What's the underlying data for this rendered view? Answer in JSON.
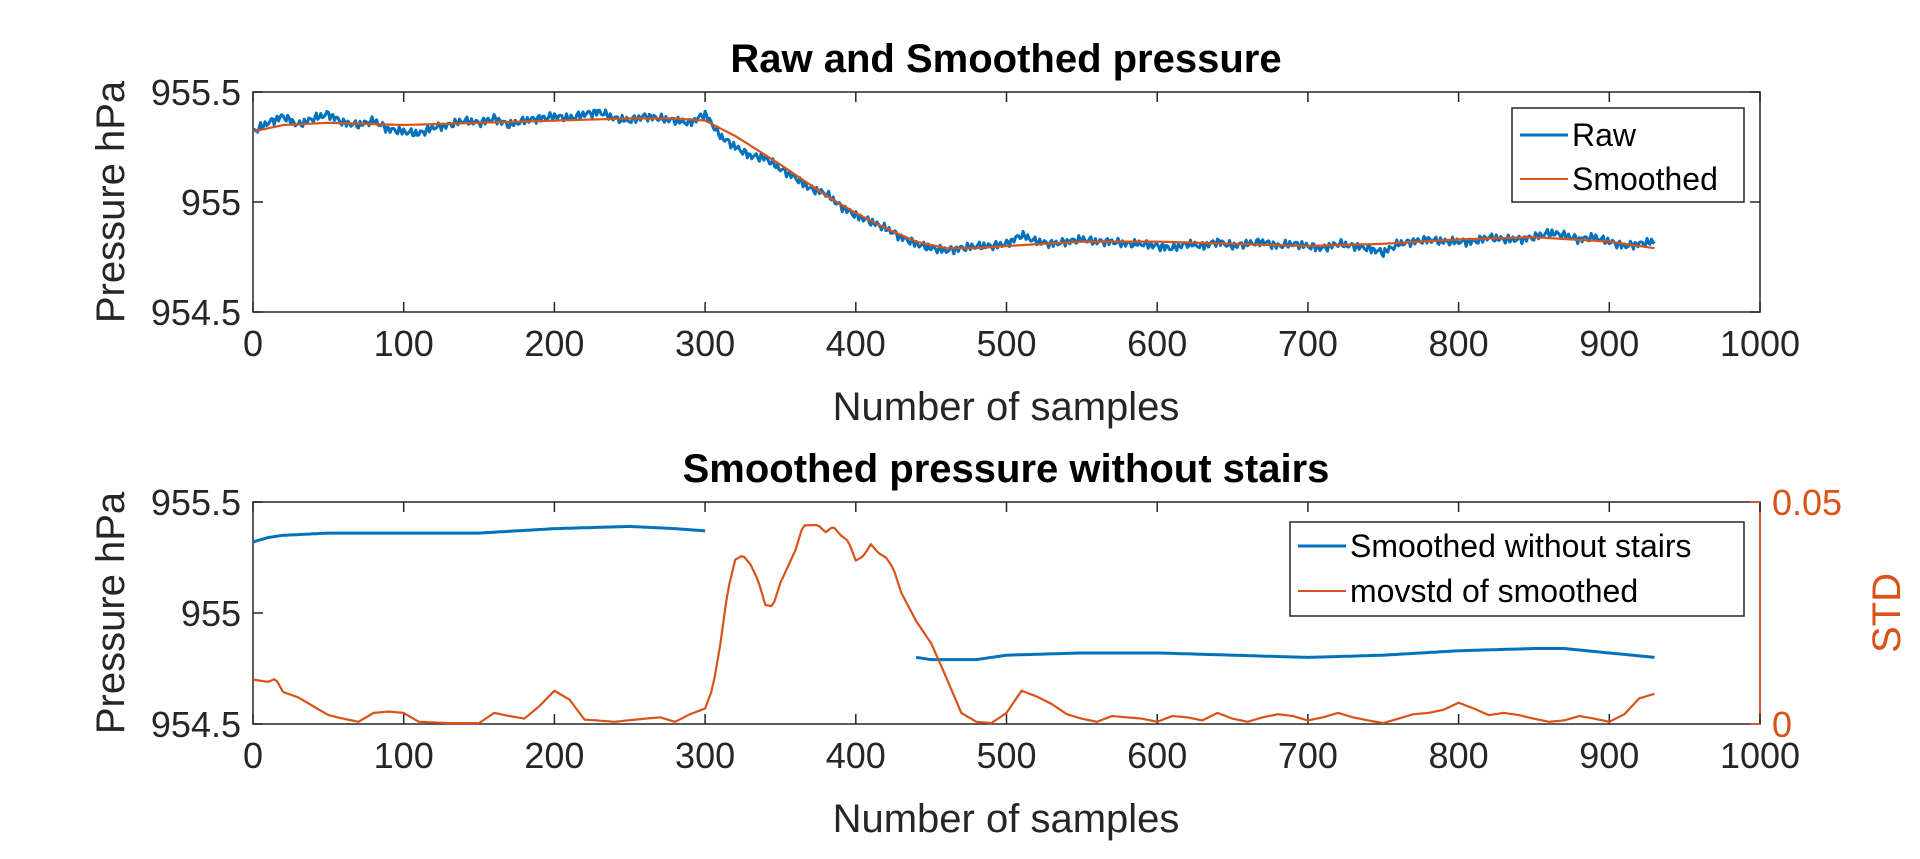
{
  "chart_data": [
    {
      "type": "line",
      "title": "Raw and Smoothed pressure",
      "xlabel": "Number of samples",
      "ylabel": "Pressure hPa",
      "xlim": [
        0,
        1000
      ],
      "ylim": [
        954.5,
        955.5
      ],
      "xticks": [
        "0",
        "100",
        "200",
        "300",
        "400",
        "500",
        "600",
        "700",
        "800",
        "900",
        "1000"
      ],
      "yticks": [
        "954.5",
        "955",
        "955.5"
      ],
      "legend_position": "top-right",
      "grid": false,
      "series": [
        {
          "name": "Raw",
          "color": "#0072BD",
          "noisy": true,
          "x": [
            0,
            10,
            20,
            30,
            40,
            50,
            60,
            70,
            80,
            90,
            100,
            110,
            120,
            130,
            140,
            150,
            160,
            170,
            180,
            190,
            200,
            210,
            220,
            230,
            240,
            250,
            260,
            270,
            280,
            290,
            300,
            310,
            320,
            330,
            340,
            350,
            360,
            370,
            380,
            390,
            400,
            410,
            420,
            430,
            440,
            450,
            460,
            470,
            480,
            490,
            500,
            510,
            520,
            530,
            540,
            550,
            560,
            570,
            580,
            590,
            600,
            610,
            620,
            630,
            640,
            650,
            660,
            670,
            680,
            690,
            700,
            710,
            720,
            730,
            740,
            750,
            760,
            770,
            780,
            790,
            800,
            810,
            820,
            830,
            840,
            850,
            860,
            870,
            880,
            890,
            900,
            910,
            920,
            930
          ],
          "values": [
            955.32,
            955.36,
            955.39,
            955.35,
            955.38,
            955.4,
            955.36,
            955.35,
            955.37,
            955.33,
            955.32,
            955.31,
            955.34,
            955.35,
            955.37,
            955.36,
            955.38,
            955.35,
            955.37,
            955.38,
            955.39,
            955.38,
            955.4,
            955.41,
            955.38,
            955.37,
            955.39,
            955.38,
            955.37,
            955.36,
            955.4,
            955.3,
            955.25,
            955.21,
            955.2,
            955.15,
            955.11,
            955.06,
            955.04,
            954.98,
            954.94,
            954.91,
            954.88,
            954.84,
            954.81,
            954.79,
            954.78,
            954.79,
            954.8,
            954.8,
            954.81,
            954.85,
            954.82,
            954.81,
            954.82,
            954.83,
            954.82,
            954.82,
            954.81,
            954.81,
            954.8,
            954.79,
            954.81,
            954.8,
            954.82,
            954.8,
            954.81,
            954.82,
            954.8,
            954.81,
            954.8,
            954.79,
            954.81,
            954.8,
            954.79,
            954.77,
            954.81,
            954.82,
            954.83,
            954.82,
            954.82,
            954.82,
            954.84,
            954.83,
            954.83,
            954.84,
            954.86,
            954.85,
            954.83,
            954.84,
            954.82,
            954.8,
            954.81,
            954.82
          ]
        },
        {
          "name": "Smoothed",
          "color": "#D95319",
          "x": [
            0,
            20,
            50,
            100,
            150,
            200,
            250,
            280,
            300,
            320,
            350,
            380,
            400,
            420,
            440,
            460,
            480,
            500,
            550,
            600,
            650,
            700,
            750,
            800,
            850,
            900,
            930
          ],
          "values": [
            955.32,
            955.35,
            955.36,
            955.35,
            955.36,
            955.37,
            955.38,
            955.38,
            955.37,
            955.3,
            955.17,
            955.03,
            954.95,
            954.88,
            954.82,
            954.79,
            954.79,
            954.8,
            954.82,
            954.82,
            954.81,
            954.8,
            954.81,
            954.83,
            954.84,
            954.82,
            954.79
          ]
        }
      ]
    },
    {
      "type": "line",
      "title": "Smoothed pressure without stairs",
      "xlabel": "Number of samples",
      "ylabel": "Pressure hPa",
      "y2label": "STD",
      "xlim": [
        0,
        1000
      ],
      "ylim": [
        954.5,
        955.5
      ],
      "y2lim": [
        0,
        0.05
      ],
      "xticks": [
        "0",
        "100",
        "200",
        "300",
        "400",
        "500",
        "600",
        "700",
        "800",
        "900",
        "1000"
      ],
      "yticks": [
        "954.5",
        "955",
        "955.5"
      ],
      "y2ticks": [
        "0",
        "0.05"
      ],
      "legend_position": "top-right",
      "grid": false,
      "series": [
        {
          "name": "Smoothed without stairs",
          "color": "#0072BD",
          "axis": "left",
          "segments": [
            {
              "x": [
                0,
                10,
                20,
                50,
                100,
                150,
                200,
                250,
                280,
                300
              ],
              "values": [
                955.32,
                955.34,
                955.35,
                955.36,
                955.36,
                955.36,
                955.38,
                955.39,
                955.38,
                955.37
              ]
            },
            {
              "x": [
                440,
                450,
                480,
                500,
                550,
                600,
                650,
                700,
                750,
                800,
                850,
                870,
                900,
                930
              ],
              "values": [
                954.8,
                954.79,
                954.79,
                954.81,
                954.82,
                954.82,
                954.81,
                954.8,
                954.81,
                954.83,
                954.84,
                954.84,
                954.82,
                954.8
              ]
            }
          ]
        },
        {
          "name": "movstd of smoothed",
          "color": "#D95319",
          "axis": "right",
          "x": [
            0,
            10,
            15,
            20,
            30,
            40,
            50,
            60,
            70,
            80,
            90,
            100,
            110,
            130,
            150,
            160,
            170,
            180,
            190,
            200,
            210,
            220,
            240,
            260,
            270,
            280,
            290,
            300,
            305,
            310,
            315,
            320,
            325,
            330,
            335,
            340,
            345,
            350,
            355,
            360,
            365,
            370,
            375,
            380,
            385,
            390,
            395,
            400,
            405,
            410,
            415,
            420,
            425,
            430,
            440,
            450,
            460,
            470,
            480,
            490,
            500,
            510,
            520,
            530,
            540,
            550,
            560,
            570,
            580,
            590,
            600,
            610,
            620,
            630,
            640,
            650,
            660,
            670,
            680,
            690,
            700,
            710,
            720,
            730,
            740,
            750,
            760,
            770,
            780,
            790,
            800,
            810,
            820,
            830,
            840,
            850,
            860,
            870,
            880,
            890,
            900,
            910,
            920,
            930
          ],
          "values": [
            0.01,
            0.0095,
            0.0102,
            0.0072,
            0.006,
            0.004,
            0.002,
            0.0012,
            0.0005,
            0.0025,
            0.0028,
            0.0025,
            0.0005,
            0.0002,
            0.0002,
            0.0025,
            0.0018,
            0.0012,
            0.004,
            0.0075,
            0.0055,
            0.001,
            0.0005,
            0.0012,
            0.0015,
            0.0005,
            0.0022,
            0.0035,
            0.008,
            0.0178,
            0.03,
            0.037,
            0.038,
            0.036,
            0.0325,
            0.0268,
            0.0265,
            0.0318,
            0.0355,
            0.0392,
            0.0447,
            0.0448,
            0.0448,
            0.0432,
            0.0445,
            0.0425,
            0.0412,
            0.0368,
            0.0378,
            0.0405,
            0.0385,
            0.0375,
            0.035,
            0.0297,
            0.0232,
            0.0182,
            0.0105,
            0.0025,
            0.0005,
            0.0002,
            0.0025,
            0.0075,
            0.0062,
            0.0045,
            0.0022,
            0.0012,
            0.0005,
            0.0018,
            0.0015,
            0.0012,
            0.0005,
            0.0018,
            0.0015,
            0.0008,
            0.0025,
            0.0012,
            0.0005,
            0.0015,
            0.0022,
            0.0018,
            0.0008,
            0.0015,
            0.0025,
            0.0015,
            0.0008,
            0.0002,
            0.0012,
            0.0022,
            0.0025,
            0.0032,
            0.0048,
            0.0035,
            0.002,
            0.0025,
            0.002,
            0.0012,
            0.0005,
            0.0008,
            0.0018,
            0.0012,
            0.0005,
            0.0022,
            0.0058,
            0.0068
          ]
        }
      ]
    }
  ]
}
